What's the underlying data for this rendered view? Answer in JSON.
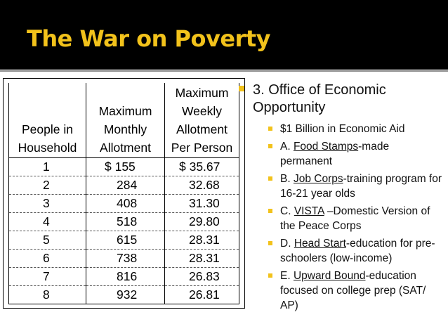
{
  "slide": {
    "title": "The War on Poverty",
    "accent_color": "#f2c21b",
    "header_bg": "#000000"
  },
  "table": {
    "headers": {
      "people": [
        "People in",
        "Household"
      ],
      "monthly": [
        "Maximum",
        "Monthly",
        "Allotment"
      ],
      "weekly": [
        "Maximum",
        "Weekly",
        "Allotment",
        "Per Person"
      ]
    },
    "rows": [
      {
        "people": "1",
        "monthly": "$ 155",
        "weekly": "$ 35.67"
      },
      {
        "people": "2",
        "monthly": "284",
        "weekly": "32.68"
      },
      {
        "people": "3",
        "monthly": "408",
        "weekly": "31.30"
      },
      {
        "people": "4",
        "monthly": "518",
        "weekly": "29.80"
      },
      {
        "people": "5",
        "monthly": "615",
        "weekly": "28.31"
      },
      {
        "people": "6",
        "monthly": "738",
        "weekly": "28.31"
      },
      {
        "people": "7",
        "monthly": "816",
        "weekly": "26.83"
      },
      {
        "people": "8",
        "monthly": "932",
        "weekly": "26.81"
      }
    ]
  },
  "bullets": {
    "main": "3. Office of Economic Opportunity",
    "items": [
      {
        "prefix": "$1 Billion in Economic Aid",
        "link": "",
        "suffix": ""
      },
      {
        "prefix": "A. ",
        "link": "Food Stamps",
        "suffix": "-made permanent"
      },
      {
        "prefix": "B. ",
        "link": "Job Corps",
        "suffix": "-training program for 16-21 year olds"
      },
      {
        "prefix": "C. ",
        "link": "VISTA",
        "suffix": " –Domestic Version of the Peace Corps"
      },
      {
        "prefix": "D. ",
        "link": "Head Start",
        "suffix": "-education for pre-schoolers (low-income)"
      },
      {
        "prefix": "E. ",
        "link": "Upward Bound",
        "suffix": "-education focused on college prep (SAT/ AP)"
      }
    ]
  }
}
